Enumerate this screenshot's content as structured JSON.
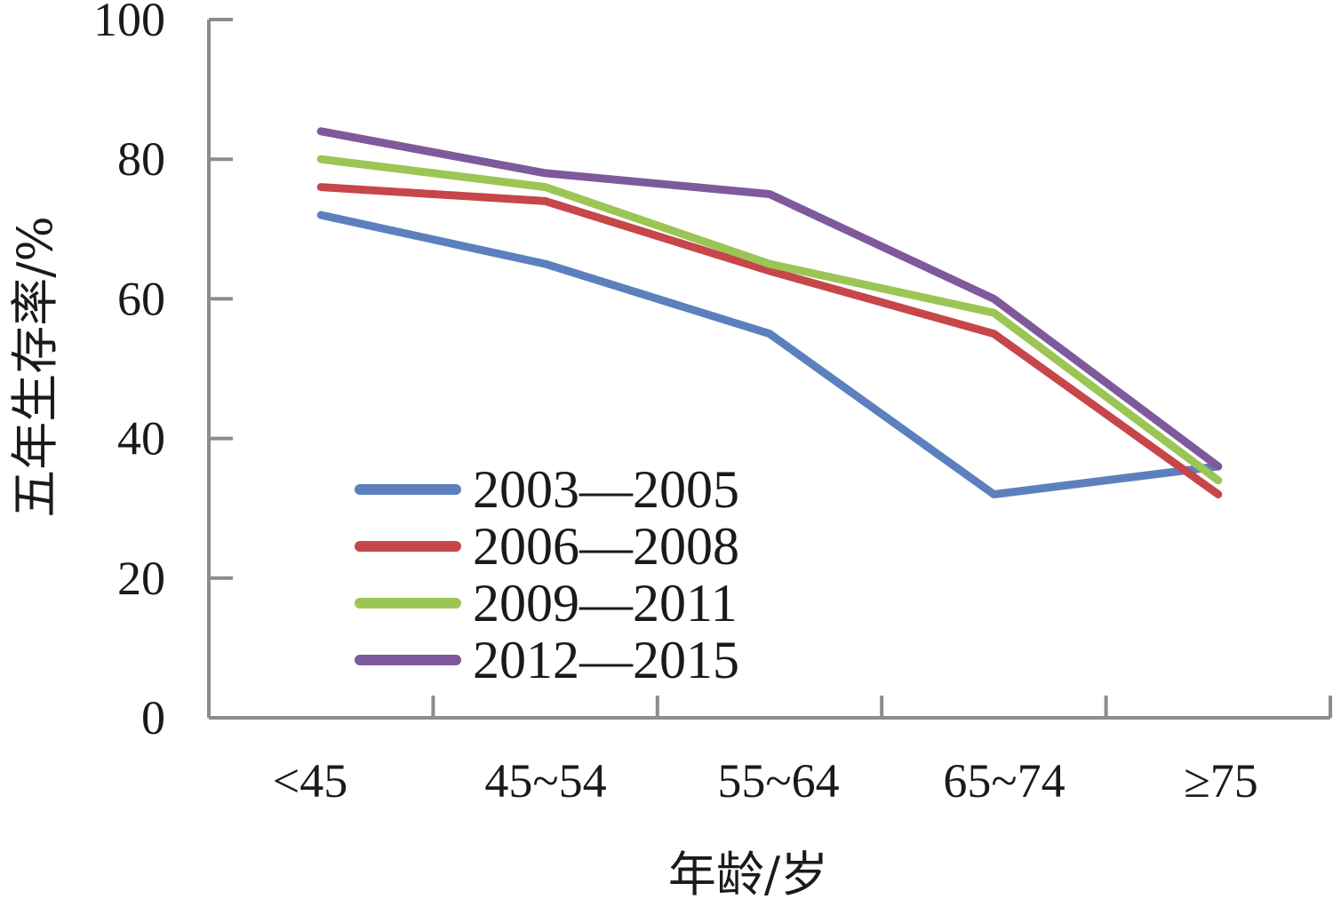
{
  "chart_data": {
    "type": "line",
    "categories": [
      "<45",
      "45~54",
      "55~64",
      "65~74",
      "≥75"
    ],
    "series": [
      {
        "name": "2003—2005",
        "color": "#5b80bd",
        "values": [
          72,
          65,
          55,
          32,
          36
        ]
      },
      {
        "name": "2006—2008",
        "color": "#c6464a",
        "values": [
          76,
          74,
          64,
          55,
          32
        ]
      },
      {
        "name": "2009—2011",
        "color": "#9bc555",
        "values": [
          80,
          76,
          65,
          58,
          34
        ]
      },
      {
        "name": "2012—2015",
        "color": "#7e5a9c",
        "values": [
          84,
          78,
          75,
          60,
          36
        ]
      }
    ],
    "xlabel": "年龄/岁",
    "ylabel": "五年生存率/%",
    "ylim": [
      0,
      100
    ],
    "yticks": [
      0,
      20,
      40,
      60,
      80,
      100
    ],
    "grid": false,
    "legend_position": "bottom-left",
    "axis_color": "#8c8c8c"
  }
}
